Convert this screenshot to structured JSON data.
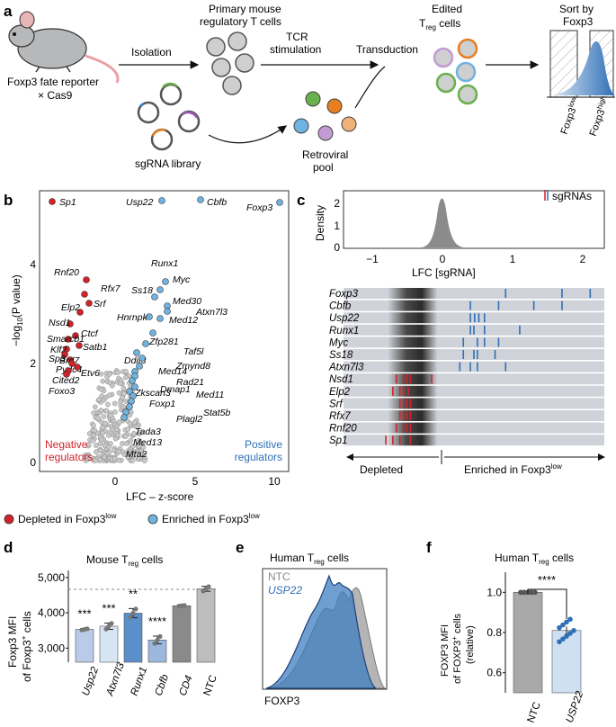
{
  "colors": {
    "red": "#d2232a",
    "blue": "#6fb3e0",
    "darkblue": "#2e6fb6",
    "grey": "#9a9a9a",
    "lightgrey": "#cfd3d9"
  },
  "panel_a": {
    "letter": "a",
    "mouse_label": "Foxp3 fate reporter",
    "mouse_label2": "× Cas9",
    "isolation": "Isolation",
    "primary1": "Primary mouse",
    "primary2": "regulatory T cells",
    "tcr1": "TCR",
    "tcr2": "stimulation",
    "transduction": "Transduction",
    "edited1": "Edited",
    "edited2_pre": "T",
    "edited2_sub": "reg",
    "edited2_post": " cells",
    "sort1": "Sort by",
    "sort2": "Foxp3",
    "sgrna": "sgRNA library",
    "retro1": "Retroviral",
    "retro2": "pool",
    "foxlow": "Foxp3",
    "foxlow_sup": "low",
    "foxhigh": "Foxp3",
    "foxhigh_sup": "high"
  },
  "panel_b": {
    "letter": "b",
    "ylabel": "−log",
    "ylabel_sub": "10",
    "ylabel_rest": "(P value)",
    "xlabel": "LFC – z-score",
    "neg1": "Negative",
    "neg2": "regulators",
    "pos1": "Positive",
    "pos2": "regulators",
    "legend_dep": "Depleted in Foxp3",
    "legend_dep_sup": "low",
    "legend_enr": "Enriched in Foxp3",
    "legend_enr_sup": "low",
    "xticks": [
      "0",
      "5",
      "10"
    ],
    "yticks": [
      "0",
      "2",
      "4"
    ],
    "genes_red": [
      "Sp1",
      "Rnf20",
      "Rfx7",
      "Srf",
      "Elp2",
      "Nsd1",
      "Ctcf",
      "Smarcb1",
      "Satb1",
      "Klf2",
      "Sp3",
      "Brd7",
      "Pydc4",
      "Etv6",
      "Cited2",
      "Foxo3"
    ],
    "genes_blue": [
      "Usp22",
      "Cbfb",
      "Foxp3",
      "Runx1",
      "Myc",
      "Ss18",
      "Med30",
      "Atxn7l3",
      "Hnrnpk",
      "Med12",
      "Zfp281",
      "Taf5l",
      "Ddit3",
      "Zmynd8",
      "Med14",
      "Rad21",
      "Dmap1",
      "Med11",
      "Zkscan3",
      "Foxp1",
      "Stat5b",
      "Plagl2",
      "Tada3",
      "Med13",
      "Mta2"
    ]
  },
  "panel_c": {
    "letter": "c",
    "density_label": "Density",
    "xlabel": "LFC [sgRNA]",
    "legend": "sgRNAs",
    "xticks": [
      "−1",
      "0",
      "1",
      "2"
    ],
    "yticks": [
      "0",
      "1",
      "2"
    ],
    "genes": [
      "Foxp3",
      "Cbfb",
      "Usp22",
      "Runx1",
      "Myc",
      "Ss18",
      "Atxn7l3",
      "Nsd1",
      "Elp2",
      "Srf",
      "Rfx7",
      "Rnf20",
      "Sp1"
    ],
    "depleted": "Depleted",
    "enriched": "Enriched in Foxp3",
    "enriched_sup": "low"
  },
  "panel_d": {
    "letter": "d",
    "title_pre": "Mouse T",
    "title_sub": "reg",
    "title_post": " cells",
    "ylabel1": "Foxp3 MFI",
    "ylabel2": "of  Foxp3",
    "ylabel2_sup": "+",
    "ylabel2_post": " cells",
    "yticks": [
      "3,000",
      "4,000",
      "5,000"
    ],
    "categories": [
      "Usp22",
      "Atxn7l3",
      "Runx1",
      "Cbfb",
      "CD4",
      "NTC"
    ],
    "values": [
      3530,
      3620,
      3990,
      3230,
      4200,
      4680
    ],
    "stars": [
      "***",
      "***",
      "**",
      "****",
      "",
      ""
    ]
  },
  "panel_e": {
    "letter": "e",
    "title_pre": "Human T",
    "title_sub": "reg",
    "title_post": " cells",
    "ntc": "NTC",
    "usp22": "USP22",
    "xlabel": "FOXP3"
  },
  "panel_f": {
    "letter": "f",
    "title_pre": "Human T",
    "title_sub": "reg",
    "title_post": " cells",
    "ylabel1": "FOXP3 MFI",
    "ylabel2": "of FOXP3",
    "ylabel2_sup": "+",
    "ylabel2_post": " cells",
    "ylabel3": "(relative)",
    "yticks": [
      "0.6",
      "0.8",
      "1.0"
    ],
    "categories": [
      "NTC",
      "USP22"
    ],
    "values": [
      1.0,
      0.81
    ],
    "stars": "****"
  },
  "chart_data": [
    {
      "type": "bar",
      "title": "Mouse Treg cells",
      "ylabel": "Foxp3 MFI of Foxp3+ cells",
      "categories": [
        "Usp22",
        "Atxn7l3",
        "Runx1",
        "Cbfb",
        "CD4",
        "NTC"
      ],
      "values": [
        3530,
        3620,
        3990,
        3230,
        4200,
        4680
      ],
      "ylim": [
        2600,
        5200
      ]
    },
    {
      "type": "bar",
      "title": "Human Treg cells",
      "ylabel": "FOXP3 MFI of FOXP3+ cells (relative)",
      "categories": [
        "NTC",
        "USP22"
      ],
      "values": [
        1.0,
        0.81
      ],
      "ylim": [
        0.5,
        1.1
      ]
    }
  ]
}
